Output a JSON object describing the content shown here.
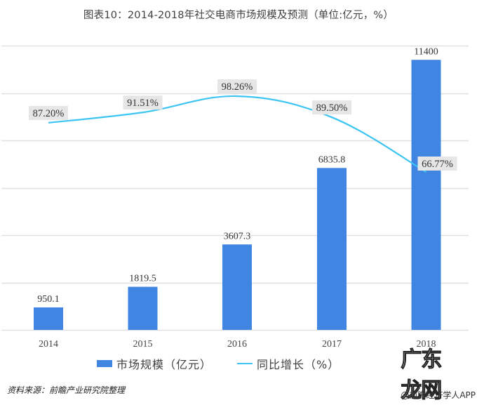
{
  "title": "图表10：2014-2018年社交电商市场规模及预测（单位:亿元，%）",
  "legend": {
    "bar_label": "市场规模（亿元）",
    "line_label": "同比增长（%）"
  },
  "source": "资料来源：前瞻产业研究院整理",
  "watermark": {
    "logo_text": "广东龙网",
    "caption": "@前瞻经济学人APP"
  },
  "colors": {
    "bar": "#3f85e1",
    "line": "#3cc4f3",
    "grid": "#e0e0e0",
    "label_bg": "#e6e6e6"
  },
  "chart_data": {
    "type": "bar+line",
    "title": "图表10：2014-2018年社交电商市场规模及预测（单位:亿元，%）",
    "categories": [
      "2014",
      "2015",
      "2016",
      "2017",
      "2018"
    ],
    "series": [
      {
        "name": "市场规模（亿元）",
        "type": "bar",
        "axis": "left",
        "values": [
          950.1,
          1819.5,
          3607.3,
          6835.8,
          11400
        ],
        "labels": [
          "950.1",
          "1819.5",
          "3607.3",
          "6835.8",
          "11400"
        ]
      },
      {
        "name": "同比增长（%）",
        "type": "line",
        "axis": "right",
        "smooth": true,
        "values": [
          87.2,
          91.51,
          98.26,
          89.5,
          66.77
        ],
        "labels": [
          "87.20%",
          "91.51%",
          "98.26%",
          "89.50%",
          "66.77%"
        ]
      }
    ],
    "xlabel": "",
    "ylabel": "",
    "ylim": [
      0,
      12000
    ],
    "grid": true,
    "gridlines": [
      0,
      2000,
      4000,
      6000,
      8000,
      10000,
      12000
    ],
    "axis_labels_visible": false,
    "legend_position": "bottom"
  }
}
